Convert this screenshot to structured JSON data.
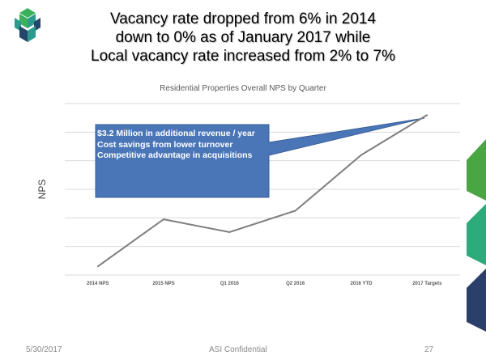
{
  "slide": {
    "headline_lines": [
      "Vacancy rate dropped from 6% in 2014",
      "down to 0% as of January 2017 while",
      "Local vacancy rate increased from 2% to 7%"
    ],
    "footer_date": "5/30/2017",
    "footer_confidential": "ASI Confidential",
    "page_number": "27"
  },
  "callout": {
    "lines": [
      "$3.2 Million in additional revenue / year",
      "Cost savings from lower turnover",
      "Competitive advantage in acquisitions"
    ],
    "fill": "#4a76b8"
  },
  "colors": {
    "line": "#7f7f7f",
    "grid": "#d9d9d9",
    "logo_green": "#3ab15a",
    "logo_teal": "#2b9a8c",
    "logo_navy": "#22476b",
    "chevron_green": "#4aa643",
    "chevron_teal": "#2eab7a",
    "chevron_navy": "#2b3f6b"
  },
  "chart_data": {
    "type": "line",
    "title": "Residential Properties Overall NPS by Quarter",
    "ylabel": "NPS",
    "xlabel": "",
    "categories": [
      "2014 NPS",
      "2015 NPS",
      "Q1 2016",
      "Q2 2016",
      "2016 YTD",
      "2017 Targets"
    ],
    "series": [
      {
        "values": [
          6,
          39,
          30,
          45,
          84,
          112
        ]
      }
    ],
    "ylim": [
      0,
      120
    ],
    "grid": true,
    "legend": "none"
  }
}
